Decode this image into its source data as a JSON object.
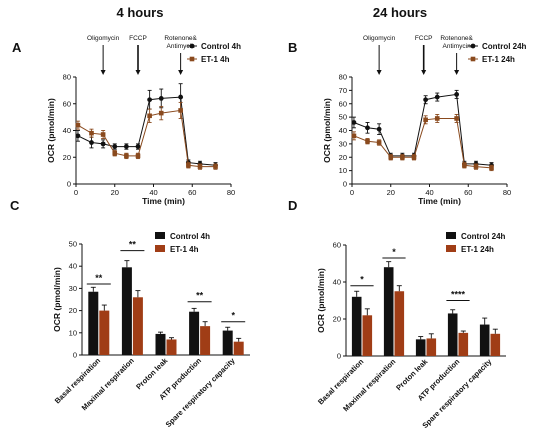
{
  "panels": [
    {
      "letter": "A",
      "title": "4 hours",
      "chart": {
        "type": "line",
        "xlabel": "Time (min)",
        "ylabel": "OCR (pmol/min)",
        "xlim": [
          0,
          80
        ],
        "ylim": [
          0,
          80
        ],
        "xticks": [
          0,
          20,
          40,
          60,
          80
        ],
        "yticks": [
          0,
          20,
          40,
          60,
          80
        ],
        "annotations": [
          {
            "label": "Oligomycin",
            "x": 14
          },
          {
            "label": "FCCP",
            "x": 32
          },
          {
            "label": "Rotenone&\nAntimycin",
            "x": 54
          }
        ],
        "legend_position": "top-right",
        "series": [
          {
            "name": "Control 4h",
            "color": "#111111",
            "x": [
              1,
              8,
              14,
              20,
              26,
              32,
              38,
              44,
              54,
              58,
              64,
              72
            ],
            "y": [
              36,
              31,
              30,
              28,
              28,
              28,
              63,
              64,
              65,
              16,
              15,
              14
            ],
            "err": [
              4,
              4,
              3,
              2,
              2,
              2,
              7,
              7,
              10,
              2,
              2,
              2
            ]
          },
          {
            "name": "ET-1 4h",
            "color": "#8a4a1e",
            "x": [
              1,
              8,
              14,
              20,
              26,
              32,
              38,
              44,
              54,
              58,
              64,
              72
            ],
            "y": [
              44,
              38,
              37,
              23,
              21,
              21,
              51,
              53,
              55,
              14,
              13,
              13
            ],
            "err": [
              3,
              3,
              3,
              2,
              2,
              2,
              5,
              5,
              6,
              2,
              2,
              2
            ]
          }
        ]
      }
    },
    {
      "letter": "B",
      "title": "24 hours",
      "chart": {
        "type": "line",
        "xlabel": "Time (min)",
        "ylabel": "OCR (pmol/min)",
        "xlim": [
          0,
          80
        ],
        "ylim": [
          0,
          80
        ],
        "xticks": [
          0,
          20,
          40,
          60,
          80
        ],
        "yticks": [
          0,
          10,
          20,
          30,
          40,
          50,
          60,
          70,
          80
        ],
        "annotations": [
          {
            "label": "Oligomycin",
            "x": 14
          },
          {
            "label": "FCCP",
            "x": 37
          },
          {
            "label": "Rotenone&\nAntimycin",
            "x": 54
          }
        ],
        "legend_position": "top-right",
        "series": [
          {
            "name": "Control 24h",
            "color": "#111111",
            "x": [
              1,
              8,
              14,
              20,
              26,
              32,
              38,
              44,
              54,
              58,
              64,
              72
            ],
            "y": [
              46,
              42,
              41,
              21,
              21,
              21,
              63,
              65,
              67,
              15,
              15,
              14
            ],
            "err": [
              4,
              4,
              4,
              2,
              2,
              2,
              3,
              3,
              3,
              2,
              2,
              2
            ]
          },
          {
            "name": "ET-1 24h",
            "color": "#8a4a1e",
            "x": [
              1,
              8,
              14,
              20,
              26,
              32,
              38,
              44,
              54,
              58,
              64,
              72
            ],
            "y": [
              36,
              32,
              31,
              20,
              20,
              20,
              48,
              49,
              49,
              14,
              13,
              12
            ],
            "err": [
              3,
              2,
              2,
              2,
              2,
              2,
              3,
              3,
              3,
              2,
              2,
              2
            ]
          }
        ]
      }
    },
    {
      "letter": "C",
      "title": "",
      "chart": {
        "type": "bar",
        "ylabel": "OCR (pmol/min)",
        "ylim": [
          0,
          50
        ],
        "yticks": [
          0,
          10,
          20,
          30,
          40,
          50
        ],
        "categories": [
          "Basal respiration",
          "Maximal respiration",
          "Proton leak",
          "ATP production",
          "Spare respiratory capacity"
        ],
        "legend_position": "top-right",
        "series": [
          {
            "name": "Control 4h",
            "color": "#111111",
            "values": [
              28.5,
              39.5,
              9.5,
              19.5,
              11
            ],
            "err": [
              2,
              3,
              0.8,
              1.5,
              1.5
            ]
          },
          {
            "name": "ET-1 4h",
            "color": "#a03d16",
            "values": [
              20,
              26,
              7,
              13,
              6
            ],
            "err": [
              2.5,
              3,
              0.8,
              2,
              1.5
            ]
          }
        ],
        "significance": [
          "**",
          "**",
          "",
          "**",
          "*"
        ],
        "sig_y": [
          32,
          47,
          0,
          24,
          15
        ]
      }
    },
    {
      "letter": "D",
      "title": "",
      "chart": {
        "type": "bar",
        "ylabel": "OCR (pmol/min)",
        "ylim": [
          0,
          60
        ],
        "yticks": [
          0,
          20,
          40,
          60
        ],
        "categories": [
          "Basal respiration",
          "Maximal respiration",
          "Proton leak",
          "ATP production",
          "Spare respiratory capacity"
        ],
        "legend_position": "top-right",
        "series": [
          {
            "name": "Control 24h",
            "color": "#111111",
            "values": [
              32,
              48,
              9,
              23,
              17
            ],
            "err": [
              3,
              3,
              1.5,
              2,
              3.5
            ]
          },
          {
            "name": "ET-1 24h",
            "color": "#a03d16",
            "values": [
              22,
              35,
              9.5,
              12.5,
              12
            ],
            "err": [
              3.5,
              3,
              2.5,
              1,
              2.5
            ]
          }
        ],
        "significance": [
          "*",
          "*",
          "",
          "****",
          ""
        ],
        "sig_y": [
          38,
          53,
          0,
          30,
          0
        ]
      }
    }
  ]
}
